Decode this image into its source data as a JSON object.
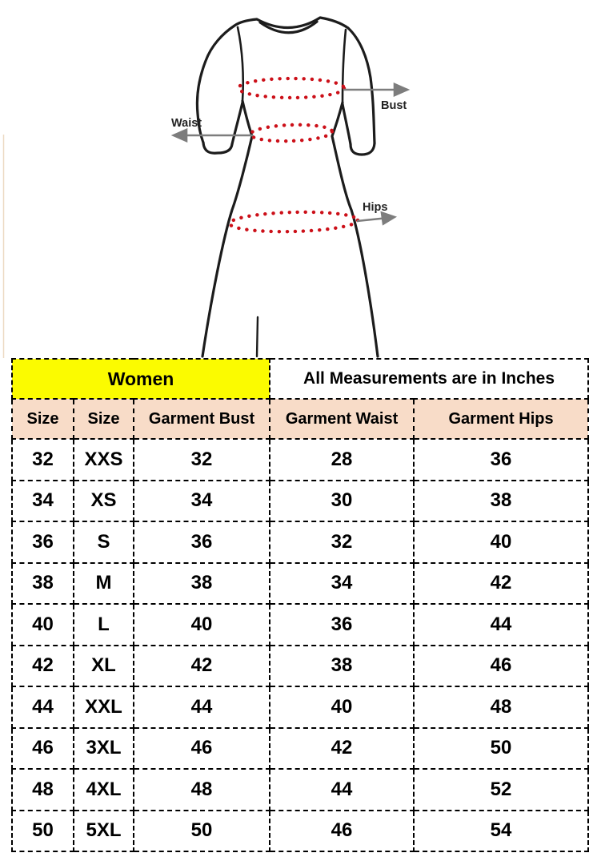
{
  "diagram": {
    "labels": {
      "bust": "Bust",
      "waist": "Waist",
      "hips": "Hips"
    },
    "colors": {
      "measure_dots_red": "#cc1019",
      "arrow_gray": "#7d7d7d",
      "outline_black": "#1c1c1c"
    }
  },
  "table": {
    "group_headers": [
      "Women",
      "All Measurements are in Inches"
    ],
    "columns": [
      "Size",
      "Size",
      "Garment Bust",
      "Garment Waist",
      "Garment Hips"
    ],
    "rows": [
      [
        "32",
        "XXS",
        "32",
        "28",
        "36"
      ],
      [
        "34",
        "XS",
        "34",
        "30",
        "38"
      ],
      [
        "36",
        "S",
        "36",
        "32",
        "40"
      ],
      [
        "38",
        "M",
        "38",
        "34",
        "42"
      ],
      [
        "40",
        "L",
        "40",
        "36",
        "44"
      ],
      [
        "42",
        "XL",
        "42",
        "38",
        "46"
      ],
      [
        "44",
        "XXL",
        "44",
        "40",
        "48"
      ],
      [
        "46",
        "3XL",
        "46",
        "42",
        "50"
      ],
      [
        "48",
        "4XL",
        "48",
        "44",
        "52"
      ],
      [
        "50",
        "5XL",
        "50",
        "46",
        "54"
      ]
    ],
    "colors": {
      "women_highlight": "#fbfb00",
      "column_header_peach": "#f8dcc8",
      "border_black": "#000000"
    }
  }
}
